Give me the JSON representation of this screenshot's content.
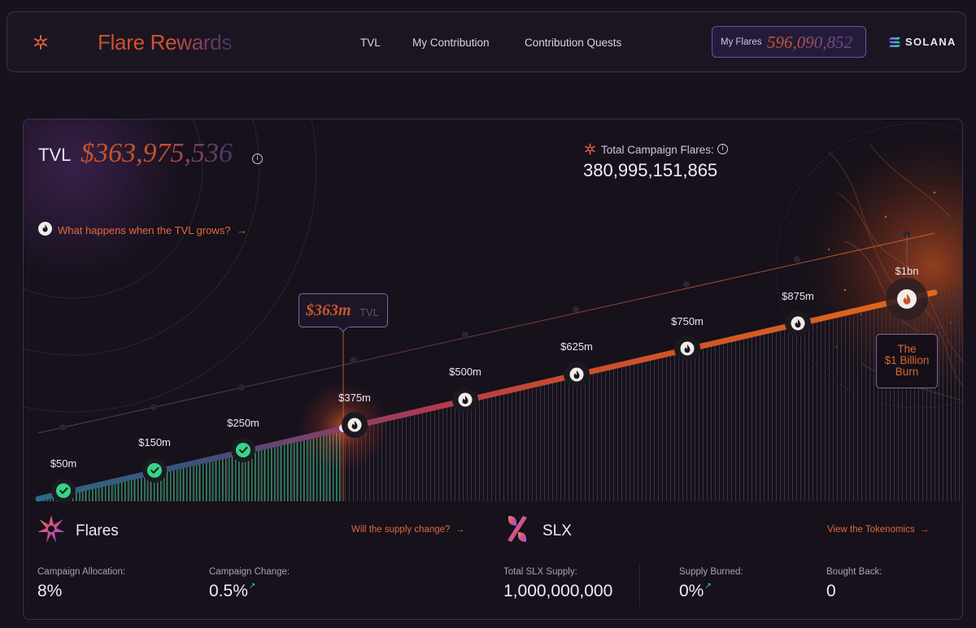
{
  "header": {
    "brand": "Flare Rewards",
    "nav": [
      "TVL",
      "My Contribution",
      "Contribution Quests"
    ],
    "my_flares_label": "My Flares",
    "my_flares_value": "596,090,852",
    "network": "SOLANA"
  },
  "tvl": {
    "label": "TVL",
    "value": "$363,975,536",
    "info_icon": "info-icon"
  },
  "campaign": {
    "label": "Total Campaign Flares:",
    "value": "380,995,151,865",
    "icon": "flare-star-icon"
  },
  "what_link": "What happens when the TVL grows?",
  "progress": {
    "current_label": "$363m",
    "current_unit": "TVL",
    "current_value_m": 363.975536,
    "milestones": [
      {
        "label": "$50m",
        "value_m": 50,
        "status": "reached"
      },
      {
        "label": "$150m",
        "value_m": 150,
        "status": "reached"
      },
      {
        "label": "$250m",
        "value_m": 250,
        "status": "reached"
      },
      {
        "label": "$375m",
        "value_m": 375,
        "status": "next"
      },
      {
        "label": "$500m",
        "value_m": 500,
        "status": "locked"
      },
      {
        "label": "$625m",
        "value_m": 625,
        "status": "locked"
      },
      {
        "label": "$750m",
        "value_m": 750,
        "status": "locked"
      },
      {
        "label": "$875m",
        "value_m": 875,
        "status": "locked"
      },
      {
        "label": "$1bn",
        "value_m": 1000,
        "status": "final"
      }
    ],
    "burn_label": [
      "The",
      "$1 Billion",
      "Burn"
    ]
  },
  "flares_section": {
    "title": "Flares",
    "link": "Will the supply change?",
    "stats": [
      {
        "label": "Campaign Allocation:",
        "value": "8%",
        "trend": ""
      },
      {
        "label": "Campaign Change:",
        "value": "0.5%",
        "trend": "↗"
      }
    ]
  },
  "slx_section": {
    "title": "SLX",
    "link": "View the Tokenomics",
    "stats": [
      {
        "label": "Total SLX Supply:",
        "value": "1,000,000,000",
        "trend": ""
      },
      {
        "label": "Supply Burned:",
        "value": "0%",
        "trend": "↗"
      },
      {
        "label": "Bought Back:",
        "value": "0",
        "trend": ""
      }
    ]
  },
  "colors": {
    "accent": "#e2693b",
    "check": "#3ed58a",
    "panel_border": "#3e3150",
    "brand_purple": "#6a4fa8"
  }
}
